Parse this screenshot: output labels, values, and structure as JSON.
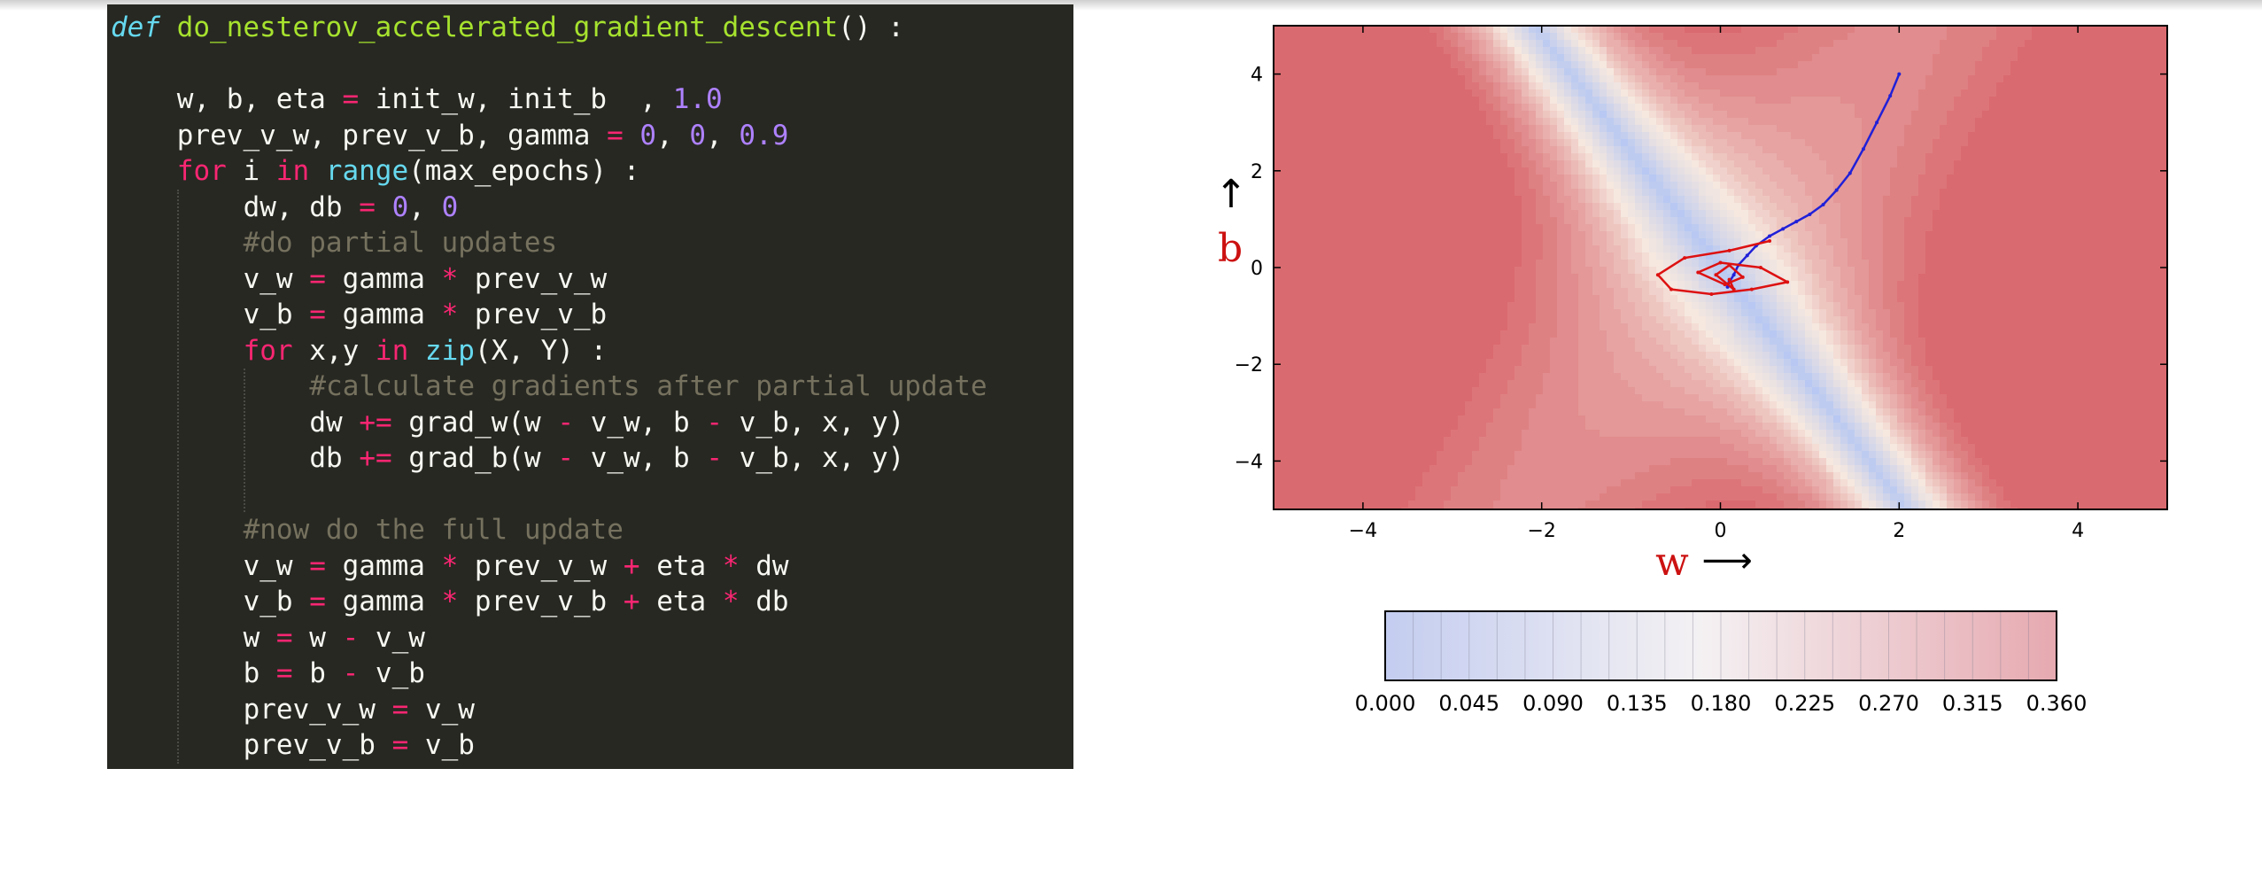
{
  "code": {
    "lines": [
      {
        "indent": 0,
        "tokens": [
          [
            "def",
            "def"
          ],
          [
            "txt",
            " "
          ],
          [
            "fn",
            "do_nesterov_accelerated_gradient_descent"
          ],
          [
            "txt",
            "() :"
          ]
        ]
      },
      {
        "indent": 0,
        "tokens": []
      },
      {
        "indent": 1,
        "tokens": [
          [
            "txt",
            "w, b, eta "
          ],
          [
            "op",
            "="
          ],
          [
            "txt",
            " init_w, init_b  , "
          ],
          [
            "num",
            "1.0"
          ]
        ]
      },
      {
        "indent": 1,
        "tokens": [
          [
            "txt",
            "prev_v_w, prev_v_b, gamma "
          ],
          [
            "op",
            "="
          ],
          [
            "txt",
            " "
          ],
          [
            "num",
            "0"
          ],
          [
            "txt",
            ", "
          ],
          [
            "num",
            "0"
          ],
          [
            "txt",
            ", "
          ],
          [
            "num",
            "0.9"
          ]
        ]
      },
      {
        "indent": 1,
        "tokens": [
          [
            "kw",
            "for"
          ],
          [
            "txt",
            " i "
          ],
          [
            "kw",
            "in"
          ],
          [
            "txt",
            " "
          ],
          [
            "builtin",
            "range"
          ],
          [
            "txt",
            "(max_epochs) :"
          ]
        ]
      },
      {
        "indent": 2,
        "tokens": [
          [
            "txt",
            "dw, db "
          ],
          [
            "op",
            "="
          ],
          [
            "txt",
            " "
          ],
          [
            "num",
            "0"
          ],
          [
            "txt",
            ", "
          ],
          [
            "num",
            "0"
          ]
        ]
      },
      {
        "indent": 2,
        "tokens": [
          [
            "cm",
            "#do partial updates"
          ]
        ]
      },
      {
        "indent": 2,
        "tokens": [
          [
            "txt",
            "v_w "
          ],
          [
            "op",
            "="
          ],
          [
            "txt",
            " gamma "
          ],
          [
            "op",
            "*"
          ],
          [
            "txt",
            " prev_v_w"
          ]
        ]
      },
      {
        "indent": 2,
        "tokens": [
          [
            "txt",
            "v_b "
          ],
          [
            "op",
            "="
          ],
          [
            "txt",
            " gamma "
          ],
          [
            "op",
            "*"
          ],
          [
            "txt",
            " prev_v_b"
          ]
        ]
      },
      {
        "indent": 2,
        "tokens": [
          [
            "kw",
            "for"
          ],
          [
            "txt",
            " x,y "
          ],
          [
            "kw",
            "in"
          ],
          [
            "txt",
            " "
          ],
          [
            "builtin",
            "zip"
          ],
          [
            "txt",
            "(X, Y) :"
          ]
        ]
      },
      {
        "indent": 3,
        "tokens": [
          [
            "cm",
            "#calculate gradients after partial update"
          ]
        ]
      },
      {
        "indent": 3,
        "tokens": [
          [
            "txt",
            "dw "
          ],
          [
            "op",
            "+="
          ],
          [
            "txt",
            " grad_w(w "
          ],
          [
            "op",
            "-"
          ],
          [
            "txt",
            " v_w, b "
          ],
          [
            "op",
            "-"
          ],
          [
            "txt",
            " v_b, x, y)"
          ]
        ]
      },
      {
        "indent": 3,
        "tokens": [
          [
            "txt",
            "db "
          ],
          [
            "op",
            "+="
          ],
          [
            "txt",
            " grad_b(w "
          ],
          [
            "op",
            "-"
          ],
          [
            "txt",
            " v_w, b "
          ],
          [
            "op",
            "-"
          ],
          [
            "txt",
            " v_b, x, y)"
          ]
        ]
      },
      {
        "indent": 0,
        "tokens": []
      },
      {
        "indent": 2,
        "tokens": [
          [
            "cm",
            "#now do the full update"
          ]
        ]
      },
      {
        "indent": 2,
        "tokens": [
          [
            "txt",
            "v_w "
          ],
          [
            "op",
            "="
          ],
          [
            "txt",
            " gamma "
          ],
          [
            "op",
            "*"
          ],
          [
            "txt",
            " prev_v_w "
          ],
          [
            "op",
            "+"
          ],
          [
            "txt",
            " eta "
          ],
          [
            "op",
            "*"
          ],
          [
            "txt",
            " dw"
          ]
        ]
      },
      {
        "indent": 2,
        "tokens": [
          [
            "txt",
            "v_b "
          ],
          [
            "op",
            "="
          ],
          [
            "txt",
            " gamma "
          ],
          [
            "op",
            "*"
          ],
          [
            "txt",
            " prev_v_b "
          ],
          [
            "op",
            "+"
          ],
          [
            "txt",
            " eta "
          ],
          [
            "op",
            "*"
          ],
          [
            "txt",
            " db"
          ]
        ]
      },
      {
        "indent": 2,
        "tokens": [
          [
            "txt",
            "w "
          ],
          [
            "op",
            "="
          ],
          [
            "txt",
            " w "
          ],
          [
            "op",
            "-"
          ],
          [
            "txt",
            " v_w"
          ]
        ]
      },
      {
        "indent": 2,
        "tokens": [
          [
            "txt",
            "b "
          ],
          [
            "op",
            "="
          ],
          [
            "txt",
            " b "
          ],
          [
            "op",
            "-"
          ],
          [
            "txt",
            " v_b"
          ]
        ]
      },
      {
        "indent": 2,
        "tokens": [
          [
            "txt",
            "prev_v_w "
          ],
          [
            "op",
            "="
          ],
          [
            "txt",
            " v_w"
          ]
        ]
      },
      {
        "indent": 2,
        "tokens": [
          [
            "txt",
            "prev_v_b "
          ],
          [
            "op",
            "="
          ],
          [
            "txt",
            " v_b"
          ]
        ]
      }
    ],
    "colors": {
      "background": "#272822",
      "keyword": "#f92672",
      "function": "#a6e22e",
      "builtin": "#66d9ef",
      "number": "#ae81ff",
      "comment": "#75715e",
      "text": "#f8f8f2"
    }
  },
  "chart_data": [
    {
      "type": "contour",
      "xlabel": "w",
      "ylabel": "b",
      "xlabel_arrow": "⟶",
      "ylabel_arrow": "↑",
      "xlim": [
        -5,
        5
      ],
      "ylim": [
        -5,
        5
      ],
      "x_ticks": [
        -4,
        -2,
        0,
        2,
        4
      ],
      "y_ticks": [
        4,
        2,
        0,
        -2,
        -4
      ],
      "x_tick_labels": [
        "−4",
        "−2",
        "0",
        "2",
        "4"
      ],
      "y_tick_labels": [
        "4",
        "2",
        "0",
        "−2",
        "−4"
      ],
      "grid": false,
      "colormap": "coolwarm",
      "colors": {
        "low": "#b8c8f2",
        "mid": "#f6e8df",
        "high": "#d96a6f"
      },
      "series": [
        {
          "color": "#2020d8",
          "x": [
            2.0,
            1.9,
            1.75,
            1.6,
            1.45,
            1.3,
            1.15,
            1.0,
            0.85,
            0.7,
            0.55,
            0.4,
            0.3,
            0.2,
            0.15,
            0.1,
            0.08
          ],
          "y": [
            4.0,
            3.55,
            3.0,
            2.45,
            1.95,
            1.6,
            1.3,
            1.1,
            0.95,
            0.8,
            0.65,
            0.45,
            0.25,
            0.05,
            -0.15,
            -0.3,
            -0.4
          ]
        },
        {
          "color": "#dd1111",
          "x": [
            0.55,
            0.1,
            -0.4,
            -0.7,
            -0.55,
            -0.1,
            0.35,
            0.75,
            0.45,
            0.0,
            -0.25,
            0.05,
            0.25,
            0.1,
            -0.05,
            0.15,
            0.1
          ],
          "y": [
            0.55,
            0.35,
            0.2,
            -0.15,
            -0.45,
            -0.55,
            -0.45,
            -0.3,
            0.0,
            0.1,
            -0.1,
            -0.35,
            -0.2,
            0.05,
            -0.15,
            -0.45,
            -0.25
          ]
        }
      ]
    },
    {
      "type": "colorbar",
      "min": 0.0,
      "max": 0.36,
      "tick_values": [
        0.0,
        0.045,
        0.09,
        0.135,
        0.18,
        0.225,
        0.27,
        0.315,
        0.36
      ],
      "tick_labels": [
        "0.000",
        "0.045",
        "0.090",
        "0.135",
        "0.180",
        "0.225",
        "0.270",
        "0.315",
        "0.360"
      ],
      "levels": 24,
      "colors": {
        "low": "#c4cdf0",
        "mid": "#f4f1f3",
        "high": "#e6a9b0"
      }
    }
  ]
}
